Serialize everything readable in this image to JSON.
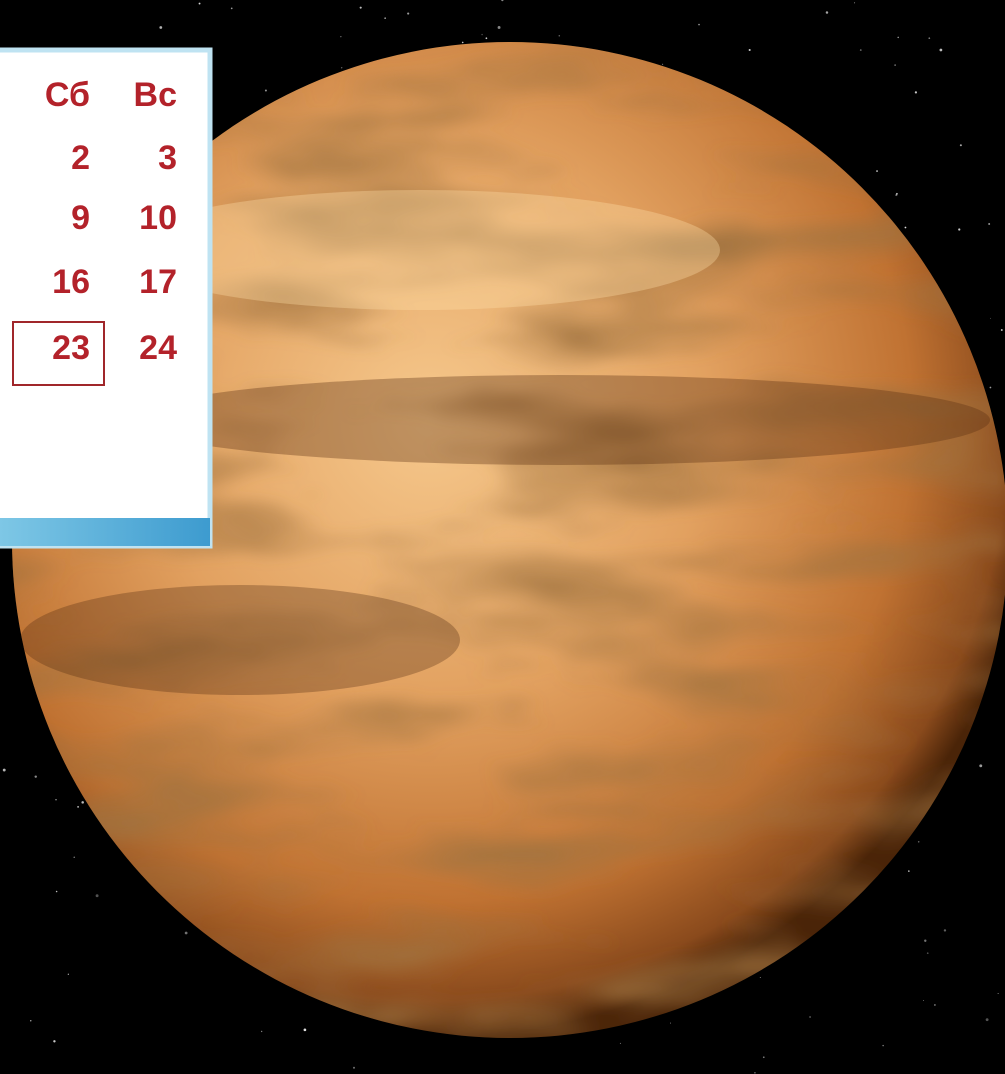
{
  "calendar": {
    "headers": [
      "Сб",
      "Вс"
    ],
    "rows": [
      [
        2,
        3
      ],
      [
        9,
        10
      ],
      [
        16,
        17
      ],
      [
        23,
        24
      ]
    ]
  }
}
